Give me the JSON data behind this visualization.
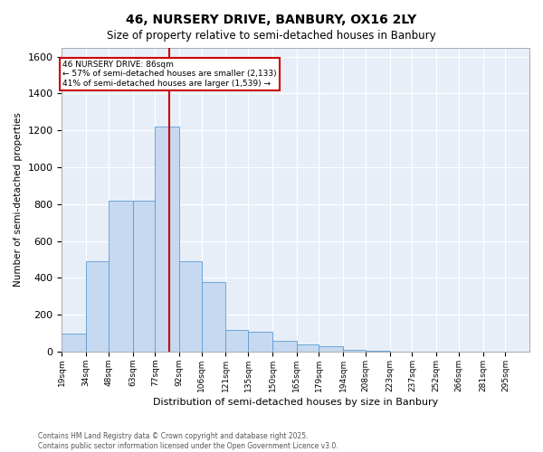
{
  "title": "46, NURSERY DRIVE, BANBURY, OX16 2LY",
  "subtitle": "Size of property relative to semi-detached houses in Banbury",
  "xlabel": "Distribution of semi-detached houses by size in Banbury",
  "ylabel": "Number of semi-detached properties",
  "property_label": "46 NURSERY DRIVE: 86sqm",
  "pct_smaller": 57,
  "pct_larger": 41,
  "count_smaller": 2133,
  "count_larger": 1539,
  "vline_x": 86,
  "bar_bins": [
    19,
    34,
    48,
    63,
    77,
    92,
    106,
    121,
    135,
    150,
    165,
    179,
    194,
    208,
    223,
    237,
    252,
    266,
    281,
    295,
    310
  ],
  "bar_heights": [
    100,
    490,
    820,
    820,
    1220,
    490,
    380,
    120,
    110,
    60,
    40,
    30,
    10,
    5,
    2,
    1,
    0,
    0,
    0,
    0
  ],
  "bar_color": "#c6d9f0",
  "bar_edge_color": "#5b9bd5",
  "vline_color": "#cc0000",
  "ylim": [
    0,
    1650
  ],
  "yticks": [
    0,
    200,
    400,
    600,
    800,
    1000,
    1200,
    1400,
    1600
  ],
  "bg_color": "#e8eef8",
  "grid_color": "#ffffff",
  "annot_edge_color": "#cc0000",
  "footer_line1": "Contains HM Land Registry data © Crown copyright and database right 2025.",
  "footer_line2": "Contains public sector information licensed under the Open Government Licence v3.0."
}
